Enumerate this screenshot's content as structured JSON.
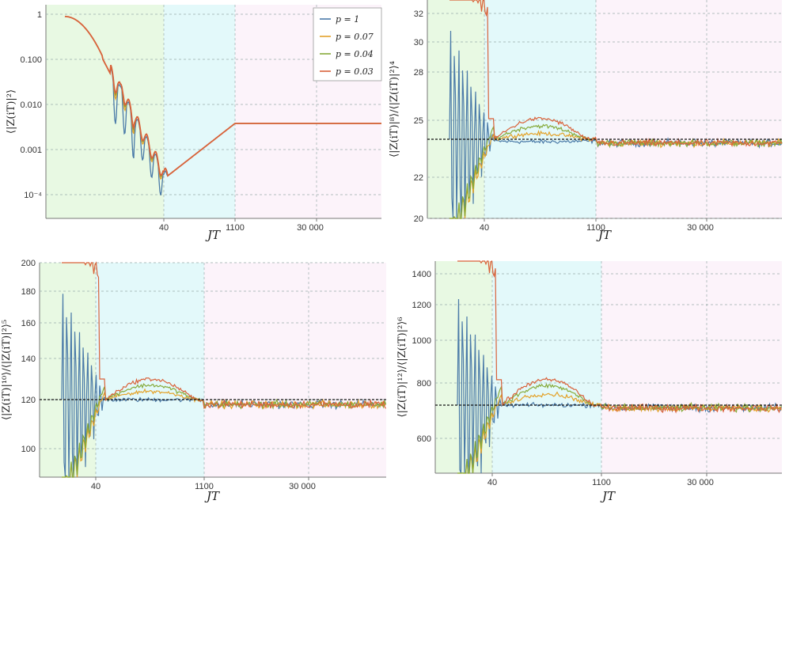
{
  "colors": {
    "p1": "#4a7aa8",
    "p007": "#e3a22a",
    "p004": "#86aa3a",
    "p003": "#d9623a",
    "region_early": "#e8f9e3",
    "region_mid": "#e3f9fa",
    "region_late": "#fcf3fa"
  },
  "legend": [
    "p = 1",
    "p = 0.07",
    "p = 0.04",
    "p = 0.03"
  ],
  "chart_data": [
    {
      "type": "line",
      "xlabel": "JT",
      "ylabel": "⟨|Z(iT)|²⟩",
      "x_scale": "log",
      "x_ticks": [
        "40",
        "1100",
        "30 000"
      ],
      "y_scale": "log",
      "y_ticks": [
        "1",
        "0.100",
        "0.010",
        "0.001",
        "10⁻⁴"
      ],
      "grid": true,
      "legend_position": "top-right",
      "series": [
        {
          "name": "p = 1",
          "behavior": "decays from 1, oscillating dips to ~1e-4 near JT 40, then rises to plateau ~0.0038 at JT 1100"
        },
        {
          "name": "p = 0.07"
        },
        {
          "name": "p = 0.04"
        },
        {
          "name": "p = 0.03"
        }
      ],
      "plateau": 0.0038
    },
    {
      "type": "line",
      "xlabel": "JT",
      "ylabel": "⟨|Z(iT)|⁸⟩/⟨|Z(iT)|²⟩⁴",
      "x_ticks": [
        "40",
        "1100",
        "30 000"
      ],
      "y_ticks": [
        "20",
        "22",
        "25",
        "28",
        "30",
        "32"
      ],
      "reference_line": 24,
      "ylim": [
        20,
        33
      ],
      "series_plateaus": {
        "p = 1": 23.9,
        "p = 0.07": 24.3,
        "p = 0.04": 24.7,
        "p = 0.03": 25.1
      },
      "late_value": 23.8
    },
    {
      "type": "line",
      "xlabel": "JT",
      "ylabel": "⟨|Z(iT)|¹⁰⟩/⟨|Z(iT)|²⟩⁵",
      "x_ticks": [
        "40",
        "1100",
        "30 000"
      ],
      "y_ticks": [
        "100",
        "120",
        "140",
        "160",
        "180",
        "200"
      ],
      "reference_line": 120,
      "ylim": [
        88,
        200
      ],
      "series_plateaus": {
        "p = 1": 120,
        "p = 0.07": 124,
        "p = 0.04": 127,
        "p = 0.03": 130
      },
      "late_value": 118
    },
    {
      "type": "line",
      "xlabel": "JT",
      "ylabel": "⟨|Z(iT)|¹²⟩/⟨|Z(iT)|²⟩⁶",
      "x_ticks": [
        "40",
        "1100",
        "30 000"
      ],
      "y_ticks": [
        "600",
        "800",
        "1000",
        "1200",
        "1400"
      ],
      "reference_line": 720,
      "ylim": [
        480,
        1470
      ],
      "series_plateaus": {
        "p = 1": 720,
        "p = 0.07": 760,
        "p = 0.04": 790,
        "p = 0.03": 815
      },
      "late_value": 710
    }
  ]
}
